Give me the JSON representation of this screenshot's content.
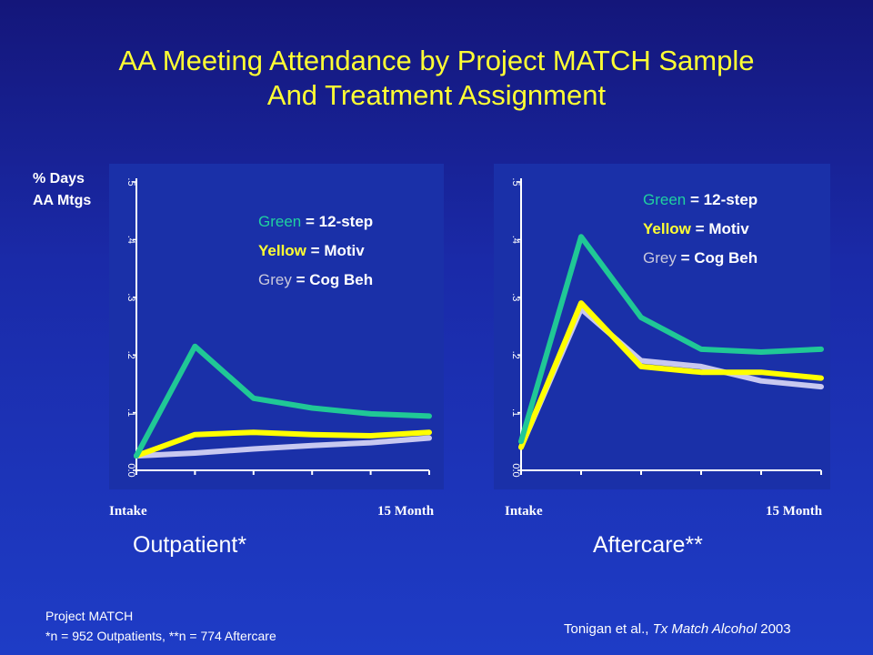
{
  "title_line1": "AA Meeting Attendance by Project MATCH Sample",
  "title_line2": "And Treatment Assignment",
  "y_label_line1": "% Days",
  "y_label_line2": "AA Mtgs",
  "legend": {
    "green_word": "Green",
    "green_rest": "12-step",
    "yellow_word": "Yellow",
    "yellow_rest": "Motiv",
    "grey_word": "Grey",
    "grey_rest": "Cog Beh",
    "eq": "="
  },
  "footnote_line1": "Project MATCH",
  "footnote_line2": "*n = 952 Outpatients, **n = 774 Aftercare",
  "citation_prefix": "Tonigan et al., ",
  "citation_journal": "Tx Match Alcohol",
  "citation_year": " 2003",
  "colors": {
    "green": "#20c896",
    "yellow": "#ffff00",
    "grey": "#c8c8f0",
    "axis": "#ffffff",
    "panel": "#1a30a8"
  },
  "chart_data": [
    {
      "type": "line",
      "title": "Outpatient*",
      "xlabel_start": "Intake",
      "xlabel_end": "15 Month",
      "ylim": [
        0,
        0.5
      ],
      "yticks": [
        ".5",
        ".4",
        ".3",
        ".2",
        ".1",
        "0.0"
      ],
      "x": [
        0,
        1,
        2,
        3,
        4,
        5
      ],
      "series": [
        {
          "name": "12-step",
          "color": "green",
          "values": [
            0.025,
            0.215,
            0.125,
            0.108,
            0.098,
            0.094
          ]
        },
        {
          "name": "Motiv",
          "color": "yellow",
          "values": [
            0.025,
            0.062,
            0.066,
            0.062,
            0.06,
            0.066
          ]
        },
        {
          "name": "Cog Beh",
          "color": "grey",
          "values": [
            0.025,
            0.03,
            0.037,
            0.043,
            0.048,
            0.056
          ]
        }
      ]
    },
    {
      "type": "line",
      "title": "Aftercare**",
      "xlabel_start": "Intake",
      "xlabel_end": "15 Month",
      "ylim": [
        0,
        0.5
      ],
      "yticks": [
        ".5",
        ".4",
        ".3",
        ".2",
        ".1",
        "0.0"
      ],
      "x": [
        0,
        1,
        2,
        3,
        4,
        5
      ],
      "series": [
        {
          "name": "12-step",
          "color": "green",
          "values": [
            0.05,
            0.405,
            0.265,
            0.21,
            0.205,
            0.21
          ]
        },
        {
          "name": "Motiv",
          "color": "yellow",
          "values": [
            0.04,
            0.29,
            0.18,
            0.17,
            0.17,
            0.16
          ]
        },
        {
          "name": "Cog Beh",
          "color": "grey",
          "values": [
            0.04,
            0.28,
            0.19,
            0.18,
            0.155,
            0.145
          ]
        }
      ]
    }
  ]
}
